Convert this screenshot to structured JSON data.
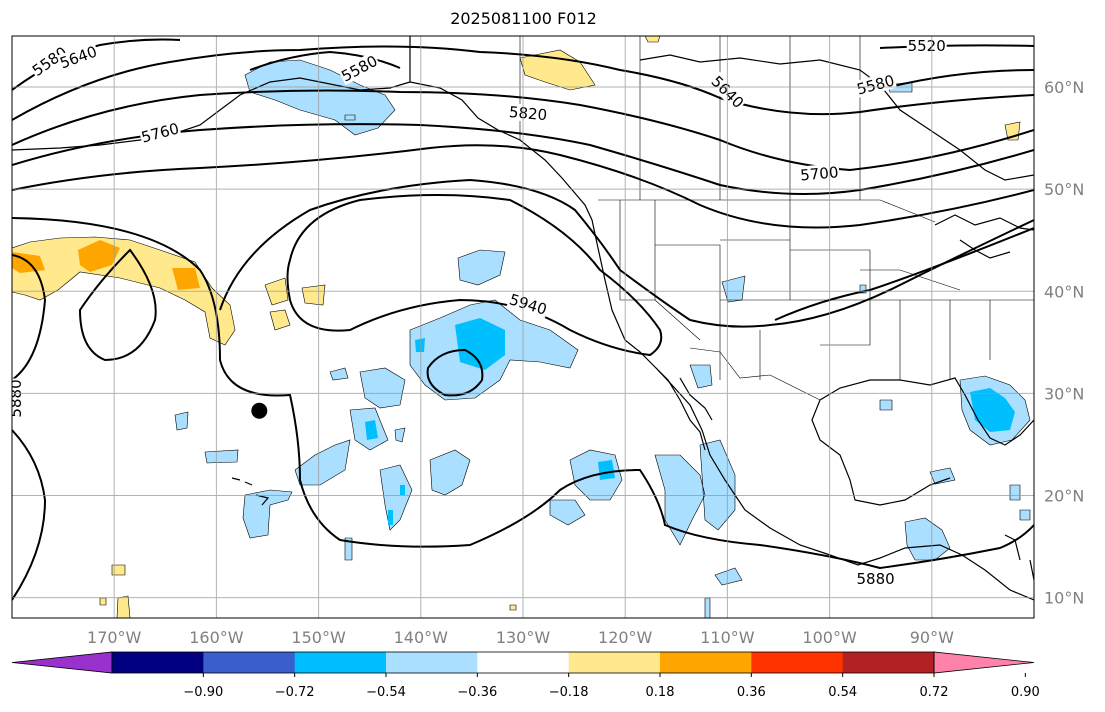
{
  "title": "2025081100 F012",
  "map": {
    "projection": "PlateCarree",
    "lon_range": [
      -180,
      -80
    ],
    "lat_range": [
      8,
      65
    ],
    "lat_ticks": [
      {
        "value": 10,
        "label": "10°N"
      },
      {
        "value": 20,
        "label": "20°N"
      },
      {
        "value": 30,
        "label": "30°N"
      },
      {
        "value": 40,
        "label": "40°N"
      },
      {
        "value": 50,
        "label": "50°N"
      },
      {
        "value": 60,
        "label": "60°N"
      }
    ],
    "lon_ticks": [
      {
        "value": -170,
        "label": "170°W"
      },
      {
        "value": -160,
        "label": "160°W"
      },
      {
        "value": -150,
        "label": "150°W"
      },
      {
        "value": -140,
        "label": "140°W"
      },
      {
        "value": -130,
        "label": "130°W"
      },
      {
        "value": -120,
        "label": "120°W"
      },
      {
        "value": -110,
        "label": "110°W"
      },
      {
        "value": -100,
        "label": "100°W"
      },
      {
        "value": -90,
        "label": "90°W"
      }
    ],
    "gridlines": true,
    "marker": {
      "lon": -155.8,
      "lat": 28.3,
      "color": "#000000"
    }
  },
  "contours": {
    "color": "#000000",
    "labels": [
      {
        "text": "5580",
        "lon": -176.3,
        "lat": 62.5,
        "angle": -35
      },
      {
        "text": "5640",
        "lon": -173.5,
        "lat": 62.9,
        "angle": -20
      },
      {
        "text": "5580",
        "lon": -146,
        "lat": 61.8,
        "angle": -28
      },
      {
        "text": "5760",
        "lon": -165.5,
        "lat": 55.5,
        "angle": -15
      },
      {
        "text": "5820",
        "lon": -129.5,
        "lat": 57.4,
        "angle": 5
      },
      {
        "text": "5640",
        "lon": -110,
        "lat": 59.5,
        "angle": 45
      },
      {
        "text": "5520",
        "lon": -90.5,
        "lat": 64,
        "angle": 0
      },
      {
        "text": "5580",
        "lon": -95.5,
        "lat": 60.2,
        "angle": -15
      },
      {
        "text": "5700",
        "lon": -101,
        "lat": 51.5,
        "angle": -5
      },
      {
        "text": "5940",
        "lon": -129.5,
        "lat": 38.7,
        "angle": 17
      },
      {
        "text": "5880",
        "lon": -179.6,
        "lat": 29.5,
        "angle": -90
      },
      {
        "text": "5880",
        "lon": -95.5,
        "lat": 11.8,
        "angle": 0
      }
    ]
  },
  "colorbar": {
    "colors": [
      "#9932cc",
      "#000080",
      "#3a5ecc",
      "#00bfff",
      "#aadfff",
      "#ffffff",
      "#ffe98c",
      "#ffa500",
      "#ff3300",
      "#b22222",
      "#ff82aa"
    ],
    "extend": "both",
    "ticks": [
      "−0.90",
      "−0.72",
      "−0.54",
      "−0.36",
      "−0.18",
      "0.18",
      "0.36",
      "0.54",
      "0.72",
      "0.90"
    ]
  }
}
